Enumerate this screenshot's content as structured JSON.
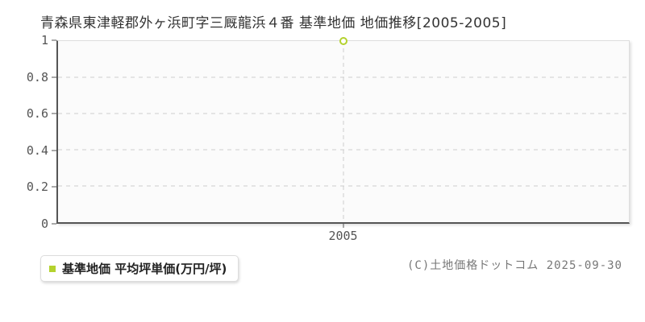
{
  "chart_data": {
    "type": "line",
    "title": "青森県東津軽郡外ヶ浜町字三厩龍浜４番 基準地価 地価推移[2005-2005]",
    "x": [
      "2005"
    ],
    "series": [
      {
        "name": "基準地価 平均坪単価(万円/坪)",
        "values": [
          1
        ]
      }
    ],
    "ylim": [
      0,
      1
    ],
    "yticks": [
      1,
      0.8,
      0.6,
      0.4,
      0.2,
      0
    ],
    "xticks": [
      "2005"
    ],
    "grid": "horizontal dashed, vertical dashed guide at each x tick",
    "legend_position": "bottom-left",
    "marker": "hollow-circle",
    "colors": {
      "series": "#b4d22e",
      "grid": "#cccccc",
      "axis": "#555555",
      "plot_background": "#fbfbfb",
      "tick_text": "#555555",
      "title_text": "#333333"
    }
  },
  "footer": {
    "copyright": "(C)土地価格ドットコム 2025-09-30"
  }
}
